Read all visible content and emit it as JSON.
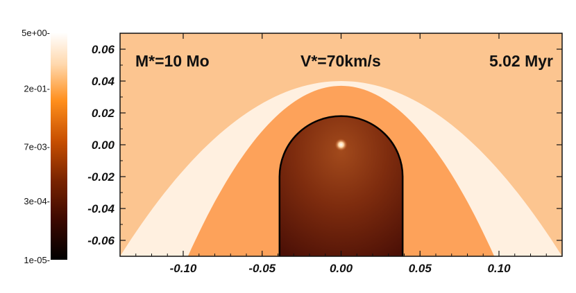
{
  "chart_data": {
    "type": "heatmap",
    "title": "",
    "xlabel": "",
    "ylabel": "",
    "xlim": [
      -0.14,
      0.14
    ],
    "ylim": [
      -0.07,
      0.07
    ],
    "x_ticks": [
      {
        "value": -0.1,
        "label": "-0.10"
      },
      {
        "value": -0.05,
        "label": "-0.05"
      },
      {
        "value": 0.0,
        "label": "0.00"
      },
      {
        "value": 0.05,
        "label": "0.05"
      },
      {
        "value": 0.1,
        "label": "0.10"
      }
    ],
    "y_ticks": [
      {
        "value": 0.06,
        "label": "0.06"
      },
      {
        "value": 0.04,
        "label": "0.04"
      },
      {
        "value": 0.02,
        "label": "0.02"
      },
      {
        "value": 0.0,
        "label": "0.00"
      },
      {
        "value": -0.02,
        "label": "-0.02"
      },
      {
        "value": -0.04,
        "label": "-0.04"
      },
      {
        "value": -0.06,
        "label": "-0.06"
      }
    ],
    "colorbar": {
      "scale": "log",
      "range": [
        1e-05,
        5
      ],
      "ticks": [
        {
          "value": 5,
          "label": "5e+00-"
        },
        {
          "value": 0.2,
          "label": "2e-01-"
        },
        {
          "value": 0.007,
          "label": "7e-03-"
        },
        {
          "value": 0.0003,
          "label": "3e-04-"
        },
        {
          "value": 1e-05,
          "label": "1e-05-"
        }
      ],
      "colors": [
        "#000000",
        "#3a0800",
        "#7a2400",
        "#c64e00",
        "#ff8f1c",
        "#ffd8ad",
        "#ffffff"
      ]
    },
    "annotations": {
      "mass": "M*=10 Mo",
      "velocity": "V*=70km/s",
      "time": "5.02 Myr"
    },
    "colors": {
      "ambient": "#fcc590",
      "outer_shell": "#fff0e0",
      "inner_shell": "#fda25a",
      "bubble": "#8e3c14",
      "bubble_core": "#5a1508",
      "contour": "#000000"
    },
    "regions": {
      "outer_shell": {
        "apex_y": 0.04,
        "halfwidth_at_ymin": 0.14
      },
      "inner_shell": {
        "apex_y": 0.037,
        "halfwidth_at_ymin": 0.097
      },
      "bubble_boundary": {
        "apex_y": 0.018,
        "halfwidth": 0.039
      },
      "star": {
        "x": 0.0,
        "y": 0.0
      }
    }
  }
}
